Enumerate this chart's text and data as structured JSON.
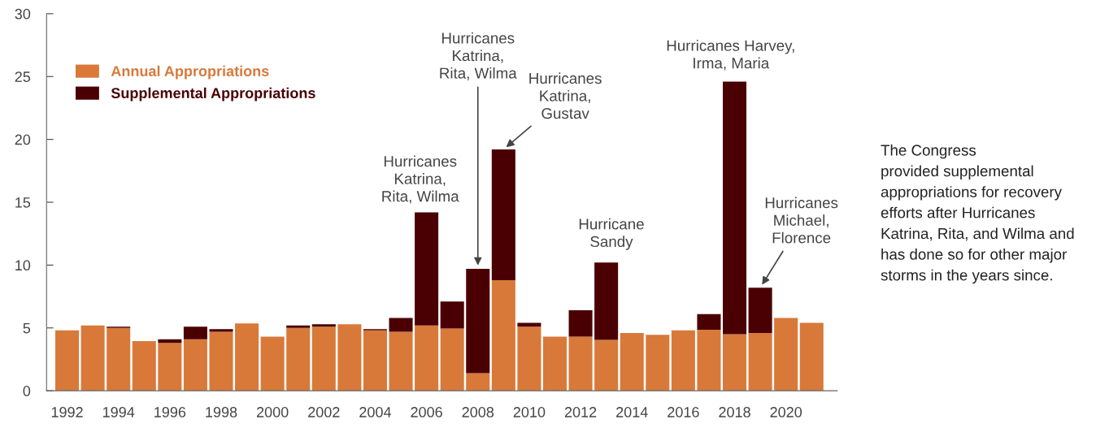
{
  "chart_data": {
    "type": "bar",
    "stacked": true,
    "x": [
      1992,
      1993,
      1994,
      1995,
      1996,
      1997,
      1998,
      1999,
      2000,
      2001,
      2002,
      2003,
      2004,
      2005,
      2006,
      2007,
      2008,
      2009,
      2010,
      2011,
      2012,
      2013,
      2014,
      2015,
      2016,
      2017,
      2018,
      2019,
      2020,
      2021
    ],
    "series": [
      {
        "name": "Annual Appropriations",
        "color": "#d8793a",
        "values": [
          4.8,
          5.2,
          5.0,
          3.95,
          3.8,
          4.1,
          4.7,
          5.35,
          4.3,
          5.0,
          5.1,
          5.3,
          4.8,
          4.7,
          5.2,
          4.95,
          1.4,
          8.8,
          5.1,
          4.3,
          4.3,
          4.05,
          4.6,
          4.45,
          4.8,
          4.85,
          4.5,
          4.6,
          5.8,
          5.4
        ]
      },
      {
        "name": "Supplemental Appropriations",
        "color": "#4a0003",
        "values": [
          0,
          0,
          0.1,
          0,
          0.3,
          1.0,
          0.2,
          0,
          0,
          0.2,
          0.2,
          0,
          0.1,
          1.1,
          9.0,
          2.15,
          8.3,
          10.4,
          0.3,
          0,
          2.1,
          6.15,
          0,
          0,
          0,
          1.25,
          20.1,
          3.6,
          0,
          0
        ]
      }
    ],
    "xlim": [
      1991.2,
      2022
    ],
    "xticks": [
      1992,
      1994,
      1996,
      1998,
      2000,
      2002,
      2004,
      2006,
      2008,
      2010,
      2012,
      2014,
      2016,
      2018,
      2020
    ],
    "ylim": [
      0,
      30
    ],
    "yticks": [
      0,
      5,
      10,
      15,
      20,
      25,
      30
    ],
    "grid": false,
    "legend": "top left",
    "annotations": [
      {
        "text": "Hurricanes\nKatrina,\nRita, Wilma",
        "x": 2006,
        "y": 14.2
      },
      {
        "text": "Hurricanes\nKatrina,\nRita, Wilma",
        "x": 2008,
        "y": 9.7
      },
      {
        "text": "Hurricanes\nKatrina,\nGustav",
        "x": 2009,
        "y": 19.2
      },
      {
        "text": "Hurricane\nSandy",
        "x": 2013,
        "y": 10.2
      },
      {
        "text": "Hurricanes Harvey,\nIrma, Maria",
        "x": 2018,
        "y": 24.6
      },
      {
        "text": "Hurricanes\nMichael,\nFlorence",
        "x": 2019,
        "y": 8.2
      },
      "The Congress\nprovided supplemental\nappropriations for recovery\nefforts after Hurricanes\nKatrina, Rita, and Wilma and\nhas done so for other major\nstorms in the years since."
    ]
  }
}
